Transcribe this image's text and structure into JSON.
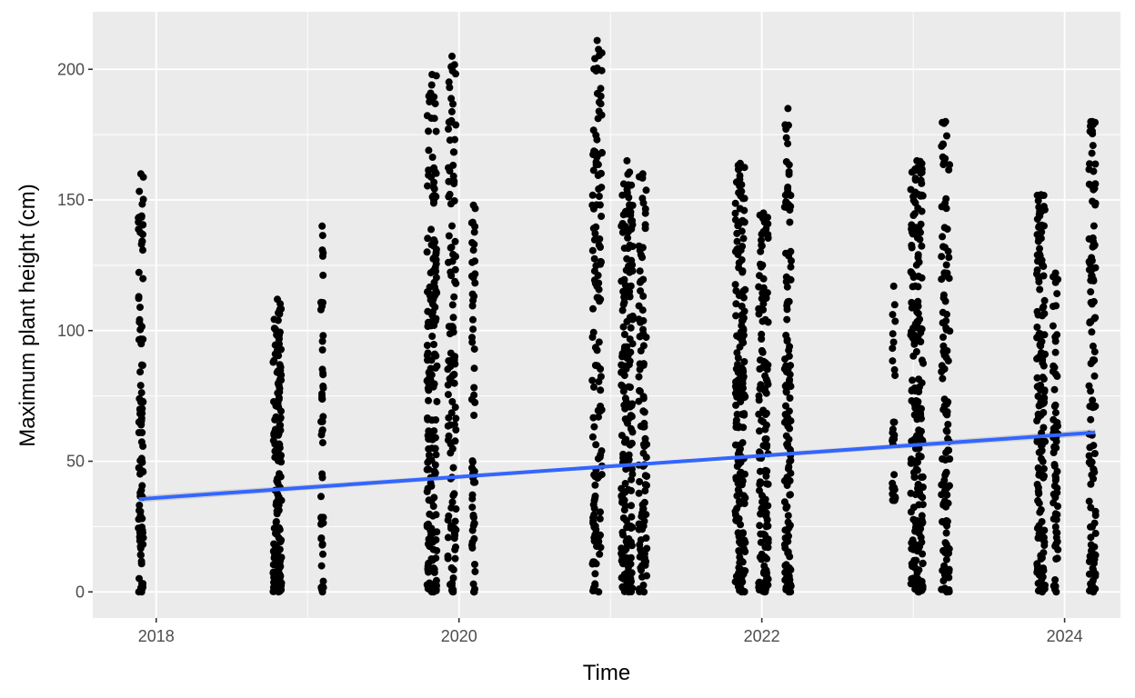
{
  "chart_data": {
    "type": "scatter",
    "title": "",
    "xlabel": "Time",
    "ylabel": "Maximum plant height (cm)",
    "x_ticks": [
      "2018",
      "2020",
      "2022",
      "2024"
    ],
    "y_ticks": [
      "0",
      "50",
      "100",
      "150",
      "200"
    ],
    "xlim": [
      "2017-08-01",
      "2024-05-15"
    ],
    "ylim": [
      -10,
      222
    ],
    "grid": true,
    "legend": "none",
    "colors": {
      "panel_background": "#ebebeb",
      "grid": "#ffffff",
      "points": "#000000",
      "trend_line": "#3366ff",
      "confidence_band": "#bdbdbd"
    },
    "trend_line": {
      "start": {
        "date": "2017-11-20",
        "height": 35.5
      },
      "end": {
        "date": "2024-03-15",
        "height": 61
      }
    },
    "sampling_clusters": [
      {
        "date": "2017-11-25",
        "spread_days": 6,
        "height_range": [
          0,
          160
        ],
        "count": 100
      },
      {
        "date": "2018-10-20",
        "spread_days": 10,
        "height_range": [
          0,
          112
        ],
        "count": 170
      },
      {
        "date": "2019-02-05",
        "spread_days": 3,
        "height_range": [
          0,
          140
        ],
        "count": 50
      },
      {
        "date": "2019-10-28",
        "spread_days": 12,
        "height_range": [
          0,
          198
        ],
        "count": 190
      },
      {
        "date": "2019-12-15",
        "spread_days": 10,
        "height_range": [
          0,
          205
        ],
        "count": 120
      },
      {
        "date": "2020-02-05",
        "spread_days": 4,
        "height_range": [
          0,
          148
        ],
        "count": 60
      },
      {
        "date": "2020-11-30",
        "spread_days": 12,
        "height_range": [
          0,
          211
        ],
        "count": 140
      },
      {
        "date": "2021-02-10",
        "spread_days": 14,
        "height_range": [
          0,
          165
        ],
        "count": 200
      },
      {
        "date": "2021-03-20",
        "spread_days": 10,
        "height_range": [
          0,
          160
        ],
        "count": 100
      },
      {
        "date": "2021-11-10",
        "spread_days": 12,
        "height_range": [
          0,
          164
        ],
        "count": 190
      },
      {
        "date": "2022-01-05",
        "spread_days": 12,
        "height_range": [
          0,
          145
        ],
        "count": 150
      },
      {
        "date": "2022-03-05",
        "spread_days": 8,
        "height_range": [
          0,
          185
        ],
        "count": 130
      },
      {
        "date": "2022-11-15",
        "spread_days": 4,
        "height_range": [
          35,
          117
        ],
        "count": 30
      },
      {
        "date": "2023-01-10",
        "spread_days": 15,
        "height_range": [
          0,
          165
        ],
        "count": 210
      },
      {
        "date": "2023-03-20",
        "spread_days": 10,
        "height_range": [
          0,
          180
        ],
        "count": 120
      },
      {
        "date": "2023-11-05",
        "spread_days": 10,
        "height_range": [
          0,
          152
        ],
        "count": 170
      },
      {
        "date": "2023-12-10",
        "spread_days": 6,
        "height_range": [
          0,
          122
        ],
        "count": 70
      },
      {
        "date": "2024-03-08",
        "spread_days": 8,
        "height_range": [
          0,
          180
        ],
        "count": 120
      }
    ]
  }
}
